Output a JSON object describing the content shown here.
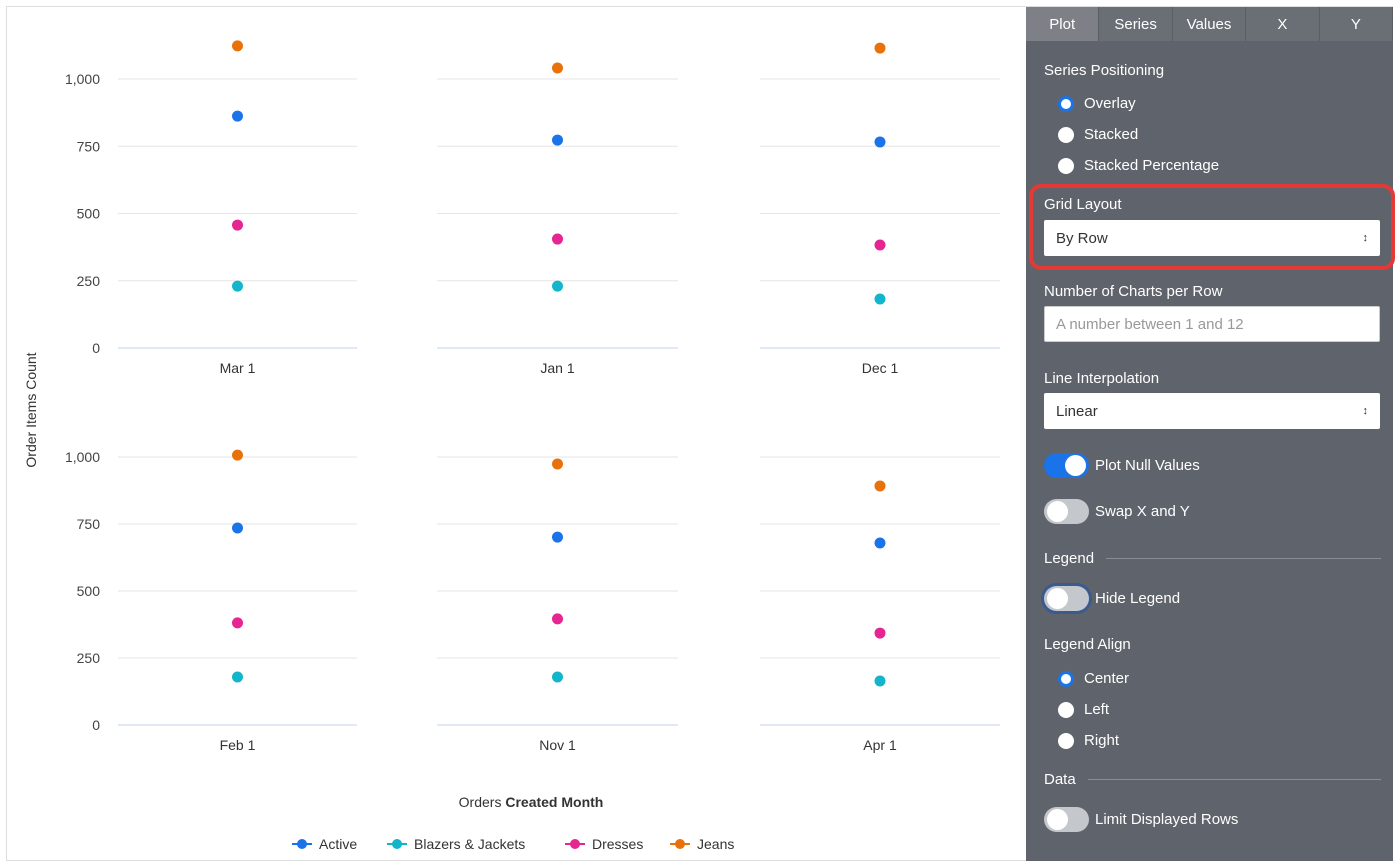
{
  "chart_data": {
    "type": "scatter",
    "layout": "small-multiples grid by row, 3 columns",
    "ylabel": "Order Items Count",
    "xlabel_prefix": "Orders",
    "xlabel_bold": "Created Month",
    "ylim": [
      0,
      1000
    ],
    "yticks": [
      "0",
      "250",
      "500",
      "750",
      "1,000"
    ],
    "grid": true,
    "legend_position": "bottom-center",
    "panels": [
      {
        "category": "Mar 1",
        "values": {
          "Active": 862,
          "Blazers & Jackets": 230,
          "Dresses": 457,
          "Jeans": 1123
        }
      },
      {
        "category": "Jan 1",
        "values": {
          "Active": 773,
          "Blazers & Jackets": 230,
          "Dresses": 405,
          "Jeans": 1041
        }
      },
      {
        "category": "Dec 1",
        "values": {
          "Active": 766,
          "Blazers & Jackets": 182,
          "Dresses": 383,
          "Jeans": 1115
        }
      },
      {
        "category": "Feb 1",
        "values": {
          "Active": 735,
          "Blazers & Jackets": 179,
          "Dresses": 381,
          "Jeans": 1007
        }
      },
      {
        "category": "Nov 1",
        "values": {
          "Active": 701,
          "Blazers & Jackets": 179,
          "Dresses": 396,
          "Jeans": 974
        }
      },
      {
        "category": "Apr 1",
        "values": {
          "Active": 679,
          "Blazers & Jackets": 164,
          "Dresses": 343,
          "Jeans": 892
        }
      }
    ],
    "series": [
      {
        "name": "Active",
        "color": "#1a73e8"
      },
      {
        "name": "Blazers & Jackets",
        "color": "#12b5cb"
      },
      {
        "name": "Dresses",
        "color": "#e52592"
      },
      {
        "name": "Jeans",
        "color": "#e8710a"
      }
    ]
  },
  "panel": {
    "tabs": [
      "Plot",
      "Series",
      "Values",
      "X",
      "Y"
    ],
    "active_tab": "Plot",
    "series_positioning": {
      "label": "Series Positioning",
      "options": [
        "Overlay",
        "Stacked",
        "Stacked Percentage"
      ],
      "selected": "Overlay"
    },
    "grid_layout": {
      "label": "Grid Layout",
      "value": "By Row"
    },
    "charts_per_row": {
      "label": "Number of Charts per Row",
      "placeholder": "A number between 1 and 12",
      "value": ""
    },
    "line_interpolation": {
      "label": "Line Interpolation",
      "value": "Linear"
    },
    "plot_null_values": {
      "label": "Plot Null Values",
      "on": true
    },
    "swap_xy": {
      "label": "Swap X and Y",
      "on": false
    },
    "legend_section": "Legend",
    "hide_legend": {
      "label": "Hide Legend",
      "on": false
    },
    "legend_align": {
      "label": "Legend Align",
      "options": [
        "Center",
        "Left",
        "Right"
      ],
      "selected": "Center"
    },
    "data_section": "Data",
    "limit_rows": {
      "label": "Limit Displayed Rows",
      "on": false
    },
    "highlight_color": "#e53935"
  }
}
